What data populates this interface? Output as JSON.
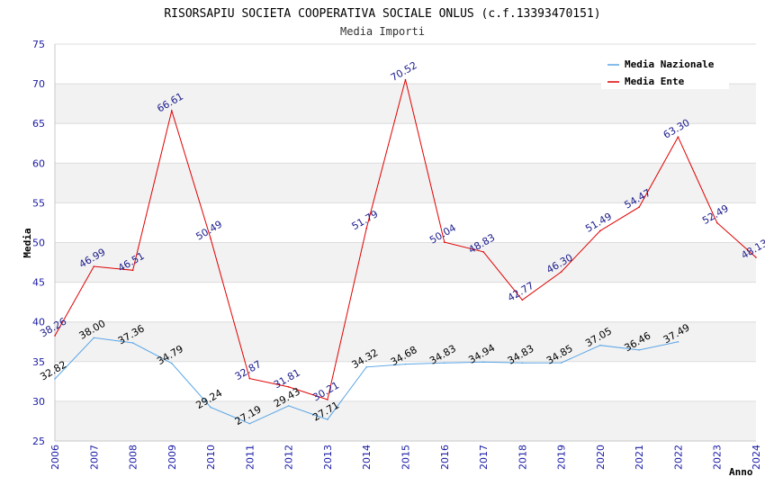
{
  "chart_data": {
    "type": "line",
    "title": "RISORSAPIU SOCIETA COOPERATIVA SOCIALE ONLUS (c.f.13393470151)",
    "subtitle": "Media Importi",
    "xlabel": "Anno",
    "ylabel": "Media",
    "ylim": [
      25,
      75
    ],
    "yticks": [
      "25",
      "30",
      "35",
      "40",
      "45",
      "50",
      "55",
      "60",
      "65",
      "70",
      "75"
    ],
    "categories": [
      "2006",
      "2007",
      "2008",
      "2009",
      "2010",
      "2011",
      "2012",
      "2013",
      "2014",
      "2015",
      "2016",
      "2017",
      "2018",
      "2019",
      "2020",
      "2021",
      "2022",
      "2023",
      "2024"
    ],
    "legend_position": "top-right",
    "series": [
      {
        "name": "Media Nazionale",
        "color": "#5aa5e6",
        "label_color": "#000000",
        "values": [
          32.82,
          38.0,
          37.36,
          34.79,
          29.24,
          27.19,
          29.43,
          27.71,
          34.32,
          34.68,
          34.83,
          34.94,
          34.83,
          34.85,
          37.05,
          36.46,
          37.49,
          null,
          null
        ],
        "labels": [
          "32.82",
          "38.00",
          "37.36",
          "34.79",
          "29.24",
          "27.19",
          "29.43",
          "27.71",
          "34.32",
          "34.68",
          "34.83",
          "34.94",
          "34.83",
          "34.85",
          "37.05",
          "36.46",
          "37.49",
          "",
          ""
        ]
      },
      {
        "name": "Media Ente",
        "color": "#e00000",
        "label_color": "#1a1a8c",
        "values": [
          38.26,
          46.99,
          46.51,
          66.61,
          50.49,
          32.87,
          31.81,
          30.21,
          51.79,
          70.52,
          50.04,
          48.83,
          42.77,
          46.3,
          51.49,
          54.47,
          63.3,
          52.49,
          48.13
        ],
        "labels": [
          "38.26",
          "46.99",
          "46.51",
          "66.61",
          "50.49",
          "32.87",
          "31.81",
          "30.21",
          "51.79",
          "70.52",
          "50.04",
          "48.83",
          "42.77",
          "46.30",
          "51.49",
          "54.47",
          "63.30",
          "52.49",
          "48.13"
        ]
      }
    ]
  }
}
